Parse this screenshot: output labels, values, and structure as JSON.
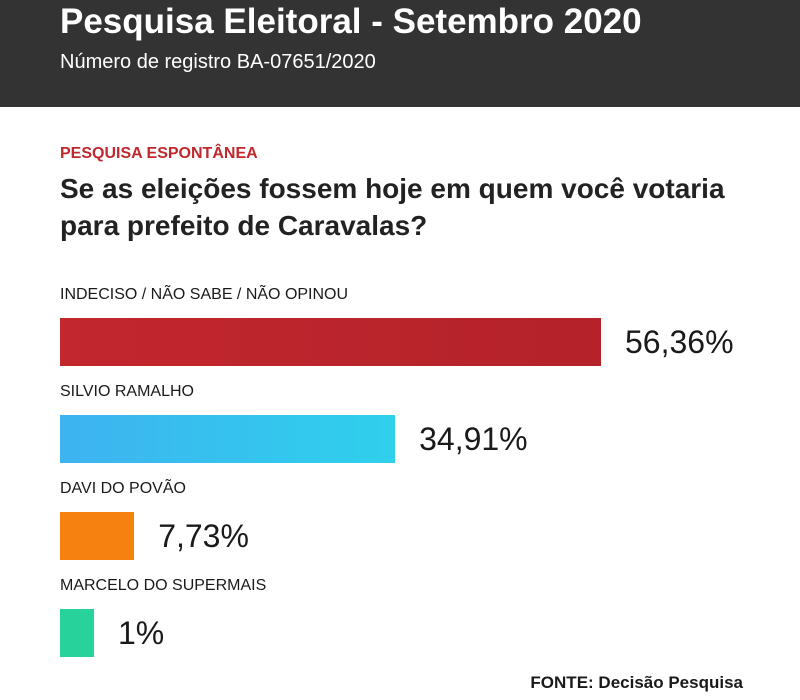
{
  "header": {
    "title": "Pesquisa Eleitoral - Setembro 2020",
    "subtitle": "Número de registro BA-07651/2020"
  },
  "section_label": "PESQUISA ESPONTÂNEA",
  "question": "Se as eleições fossem hoje em quem você votaria para prefeito de Caravalas?",
  "source": "FONTE: Decisão Pesquisa",
  "chart_data": {
    "type": "bar",
    "orientation": "horizontal",
    "categories": [
      "INDECISO / NÃO SABE / NÃO OPINOU",
      "SILVIO RAMALHO",
      "DAVI DO POVÃO",
      "MARCELO DO SUPERMAIS"
    ],
    "values": [
      56.36,
      34.91,
      7.73,
      1
    ],
    "value_labels": [
      "56,36%",
      "34,91%",
      "7,73%",
      "1%"
    ],
    "colors": [
      [
        "#c1272d",
        "#b5222a"
      ],
      [
        "#3db3f0",
        "#2fd0ec"
      ],
      [
        "#f7810f",
        "#f7810f"
      ],
      [
        "#27d39a",
        "#27d39a"
      ]
    ],
    "ylabel": "",
    "xlabel": "",
    "grid": false
  }
}
